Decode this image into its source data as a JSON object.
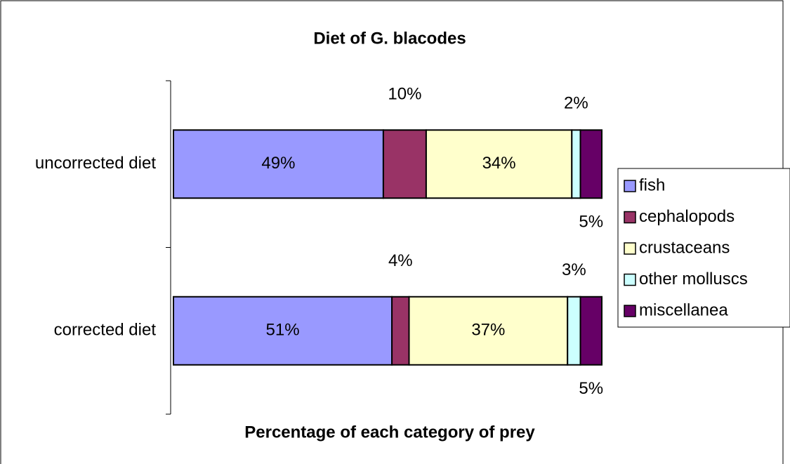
{
  "chart_data": {
    "type": "stacked-bar-horizontal",
    "title": "Diet of G. blacodes",
    "x_label": "Percentage of each category of prey",
    "categories": [
      "uncorrected diet",
      "corrected diet"
    ],
    "xlim": [
      0,
      100
    ],
    "series": [
      {
        "name": "fish",
        "color": "#9999ff",
        "values": [
          49,
          51
        ],
        "value_labels": [
          "49%",
          "51%"
        ]
      },
      {
        "name": "cephalopods",
        "color": "#993366",
        "values": [
          10,
          4
        ],
        "value_labels": [
          "10%",
          "4%"
        ]
      },
      {
        "name": "crustaceans",
        "color": "#ffffcc",
        "values": [
          34,
          37
        ],
        "value_labels": [
          "34%",
          "37%"
        ]
      },
      {
        "name": "other molluscs",
        "color": "#ccffff",
        "values": [
          2,
          3
        ],
        "value_labels": [
          "2%",
          "3%"
        ]
      },
      {
        "name": "miscellanea",
        "color": "#660066",
        "values": [
          5,
          5
        ],
        "value_labels": [
          "5%",
          "5%"
        ]
      }
    ],
    "legend": "right"
  }
}
